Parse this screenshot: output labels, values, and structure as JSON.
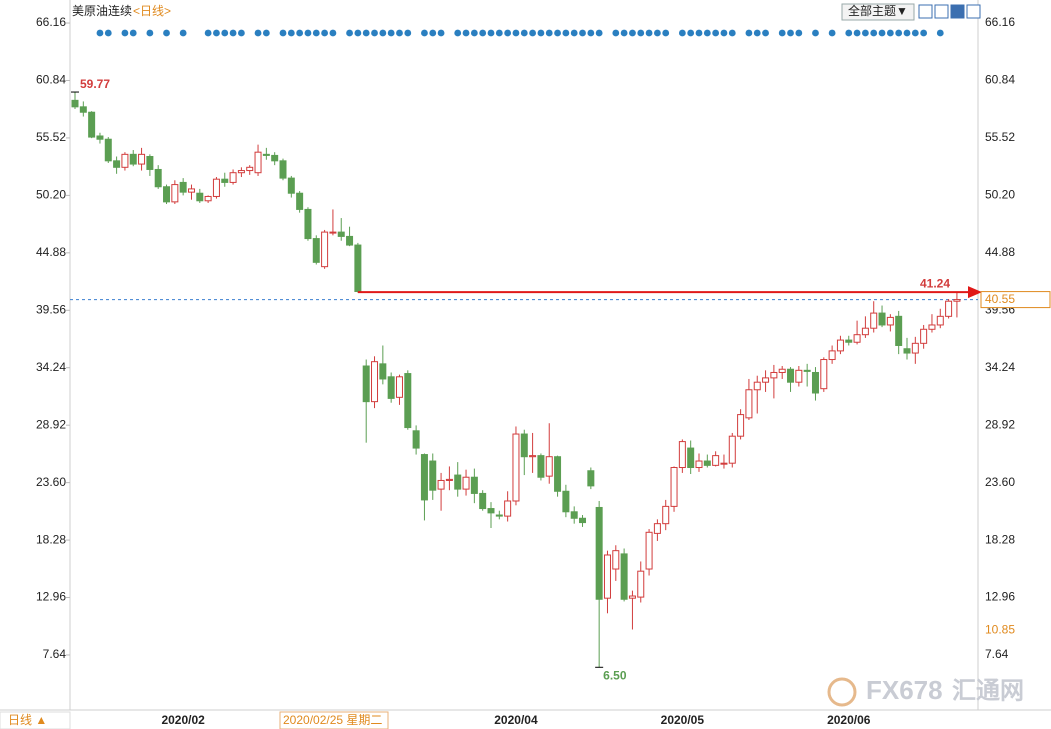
{
  "chart_data": {
    "type": "candlestick",
    "title": "美原油连续",
    "period": "<日线>",
    "theme_button": "全部主题▼",
    "period_button": "日线 ▲",
    "cursor_date": "2020/02/25 星期二",
    "watermark": [
      "FX678",
      "汇通网"
    ],
    "up_color": "#d23c3c",
    "down_color": "#5b9e52",
    "ylim": [
      2.73,
      67.83
    ],
    "yticks": [
      7.64,
      12.96,
      18.28,
      {
        "value": 23.6,
        "label": "23.60"
      },
      28.92,
      34.24,
      39.56,
      44.88,
      {
        "value": 50.2,
        "label": "50.20"
      },
      55.52,
      60.84,
      66.16
    ],
    "categories": [
      null,
      null,
      null,
      null,
      null,
      null,
      null,
      null,
      null,
      null,
      null,
      null,
      null,
      "2020/02",
      null,
      null,
      null,
      null,
      null,
      null,
      null,
      null,
      null,
      null,
      null,
      null,
      null,
      null,
      null,
      null,
      null,
      null,
      null,
      null,
      null,
      null,
      null,
      null,
      null,
      null,
      null,
      null,
      null,
      null,
      null,
      null,
      null,
      null,
      null,
      null,
      null,
      null,
      null,
      "2020/04",
      null,
      null,
      null,
      null,
      null,
      null,
      null,
      null,
      null,
      null,
      null,
      null,
      null,
      null,
      null,
      null,
      null,
      null,
      null,
      "2020/05",
      null,
      null,
      null,
      null,
      null,
      null,
      null,
      null,
      null,
      null,
      null,
      null,
      null,
      null,
      null,
      null,
      null,
      null,
      null,
      "2020/06",
      null,
      null,
      null,
      null,
      null,
      null,
      null,
      null,
      null,
      null,
      null,
      null,
      null
    ],
    "open": [
      59.0,
      58.4,
      57.9,
      55.7,
      55.4,
      53.4,
      52.8,
      54.0,
      53.1,
      53.8,
      52.6,
      51.0,
      49.6,
      51.4,
      50.5,
      50.4,
      49.7,
      50.1,
      51.7,
      51.4,
      52.3,
      52.5,
      52.3,
      54.0,
      53.9,
      53.4,
      51.8,
      50.4,
      48.9,
      46.2,
      43.6,
      46.8,
      46.8,
      46.4,
      45.6,
      34.4,
      31.1,
      34.6,
      33.4,
      31.5,
      33.7,
      28.4,
      26.2,
      25.6,
      23.0,
      23.8,
      24.3,
      23.0,
      24.1,
      22.6,
      21.2,
      20.6,
      20.5,
      21.9,
      28.1,
      26.0,
      26.1,
      24.2,
      26.0,
      22.8,
      20.9,
      20.3,
      24.7,
      21.3,
      12.9,
      15.6,
      17.0,
      12.9,
      13.0,
      15.6,
      18.9,
      19.8,
      21.4,
      25.0,
      26.8,
      25.0,
      25.6,
      25.2,
      25.4,
      25.4,
      27.9,
      29.6,
      32.2,
      32.9,
      33.3,
      33.8,
      34.1,
      32.9,
      34.0,
      33.8,
      32.3,
      35.0,
      35.8,
      36.8,
      36.6,
      37.3,
      37.9,
      39.3,
      38.2,
      39.0,
      36.0,
      35.6,
      36.5,
      37.8,
      38.2,
      39.0,
      40.4
    ],
    "high": [
      59.77,
      58.9,
      58.0,
      56.0,
      55.6,
      53.8,
      54.2,
      54.4,
      54.6,
      54.0,
      53.0,
      51.2,
      51.6,
      51.8,
      51.2,
      50.8,
      50.2,
      51.9,
      52.3,
      52.6,
      52.8,
      53.0,
      54.9,
      54.6,
      54.2,
      53.6,
      52.0,
      50.6,
      49.1,
      46.5,
      47.0,
      48.9,
      48.1,
      47.3,
      45.8,
      35.0,
      35.3,
      36.3,
      33.8,
      33.6,
      34.0,
      28.9,
      26.3,
      26.3,
      24.5,
      25.1,
      25.5,
      24.8,
      24.9,
      22.9,
      21.8,
      21.0,
      22.8,
      28.8,
      28.5,
      28.2,
      26.3,
      29.1,
      26.1,
      23.4,
      21.4,
      20.6,
      25.0,
      21.9,
      17.3,
      17.8,
      17.5,
      13.6,
      16.3,
      19.3,
      20.2,
      22.0,
      25.1,
      27.6,
      27.5,
      26.3,
      26.2,
      26.5,
      26.2,
      28.2,
      30.4,
      33.2,
      33.5,
      34.0,
      34.5,
      34.4,
      34.3,
      34.4,
      34.6,
      34.3,
      35.2,
      36.3,
      37.2,
      37.2,
      38.6,
      39.0,
      40.4,
      40.0,
      39.2,
      39.5,
      37.0,
      37.1,
      38.2,
      39.2,
      39.7,
      40.6,
      41.24
    ],
    "low": [
      58.2,
      57.5,
      55.5,
      55.0,
      53.2,
      52.2,
      52.5,
      52.9,
      52.5,
      52.0,
      50.8,
      49.4,
      49.4,
      50.2,
      49.8,
      49.5,
      49.5,
      49.9,
      51.0,
      51.2,
      51.9,
      52.1,
      52.0,
      53.5,
      53.0,
      51.6,
      50.0,
      48.6,
      46.0,
      43.8,
      43.4,
      46.5,
      46.0,
      45.5,
      41.2,
      27.3,
      30.5,
      32.7,
      31.0,
      30.8,
      28.5,
      26.2,
      20.1,
      22.0,
      21.0,
      22.9,
      22.3,
      22.4,
      21.7,
      21.0,
      19.4,
      20.2,
      20.0,
      21.5,
      24.3,
      24.5,
      23.8,
      23.5,
      22.3,
      20.4,
      19.8,
      19.5,
      23.0,
      6.5,
      11.5,
      14.5,
      12.6,
      10.0,
      12.5,
      15.0,
      18.2,
      19.2,
      20.9,
      24.5,
      24.4,
      24.6,
      25.0,
      25.1,
      24.9,
      25.0,
      27.6,
      29.4,
      30.0,
      32.0,
      31.4,
      33.2,
      32.0,
      32.5,
      32.5,
      31.2,
      32.0,
      34.6,
      35.5,
      36.3,
      36.4,
      37.0,
      37.5,
      38.0,
      37.6,
      35.5,
      35.0,
      34.6,
      36.0,
      37.5,
      37.9,
      38.8,
      38.9
    ],
    "close": [
      58.4,
      57.9,
      55.6,
      55.4,
      53.4,
      52.8,
      54.0,
      53.1,
      54.0,
      52.6,
      51.0,
      49.6,
      51.2,
      50.5,
      50.8,
      49.7,
      50.1,
      51.7,
      51.4,
      52.3,
      52.5,
      52.8,
      54.2,
      53.9,
      53.4,
      51.8,
      50.4,
      48.9,
      46.2,
      44.0,
      46.8,
      46.8,
      46.4,
      45.6,
      41.3,
      31.1,
      34.8,
      33.2,
      31.4,
      33.4,
      28.7,
      26.8,
      22.0,
      22.9,
      23.8,
      23.9,
      23.0,
      24.1,
      22.6,
      21.2,
      20.8,
      20.5,
      21.9,
      28.1,
      26.0,
      26.1,
      24.1,
      26.0,
      22.8,
      20.9,
      20.3,
      19.9,
      23.3,
      12.8,
      16.9,
      17.3,
      12.8,
      13.1,
      15.4,
      19.0,
      19.8,
      21.4,
      25.0,
      27.4,
      25.0,
      25.6,
      25.2,
      26.1,
      25.4,
      27.9,
      29.9,
      32.2,
      32.9,
      33.3,
      33.8,
      34.1,
      32.9,
      34.0,
      33.9,
      31.9,
      35.0,
      35.8,
      36.8,
      36.6,
      37.3,
      37.9,
      39.3,
      38.2,
      38.9,
      36.3,
      35.6,
      36.5,
      37.8,
      38.2,
      39.0,
      40.4,
      40.55
    ],
    "max_label": 59.77,
    "min_label": {
      "value": 6.5,
      "label": "6.50"
    },
    "resistance": 41.24,
    "last_price": 40.55,
    "cursor_price": 10.85
  }
}
